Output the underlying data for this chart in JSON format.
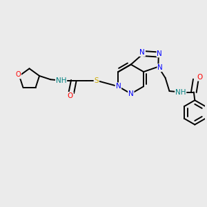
{
  "background_color": "#ebebeb",
  "bond_color": "#000000",
  "line_width": 1.4,
  "atom_colors": {
    "N": "#0000ff",
    "O": "#ff0000",
    "S": "#ccaa00",
    "H": "#008080",
    "C": "#000000"
  },
  "font_size": 7.5
}
